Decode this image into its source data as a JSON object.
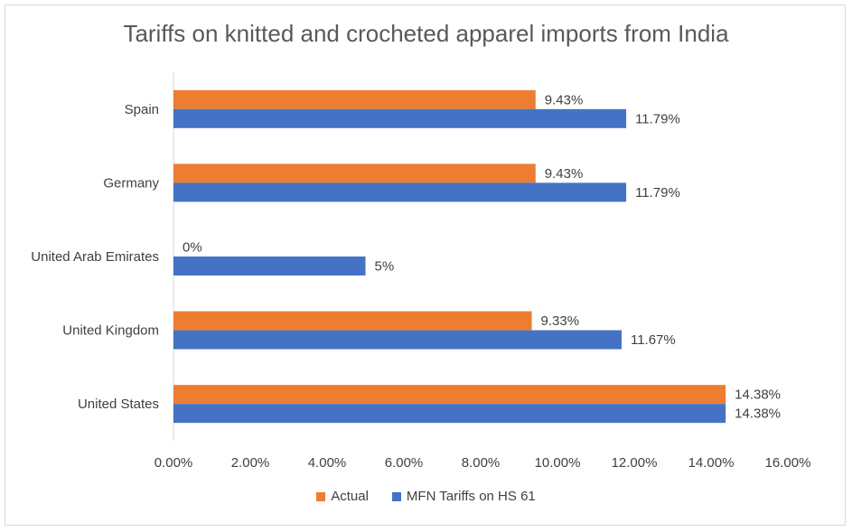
{
  "chart_data": {
    "type": "bar",
    "orientation": "horizontal",
    "title": "Tariffs on knitted and crocheted apparel imports from India",
    "categories": [
      "Spain",
      "Germany",
      "United Arab Emirates",
      "United Kingdom",
      "United States"
    ],
    "series": [
      {
        "name": "Actual",
        "color": "#ed7d31",
        "values": [
          9.43,
          9.43,
          0,
          9.33,
          14.38
        ],
        "labels": [
          "9.43%",
          "9.43%",
          "0%",
          "9.33%",
          "14.38%"
        ]
      },
      {
        "name": "MFN Tariffs on HS 61",
        "color": "#4472c4",
        "values": [
          11.79,
          11.79,
          5,
          11.67,
          14.38
        ],
        "labels": [
          "11.79%",
          "11.79%",
          "5%",
          "11.67%",
          "14.38%"
        ]
      }
    ],
    "xlim": [
      0,
      16
    ],
    "xticks": [
      "0.00%",
      "2.00%",
      "4.00%",
      "6.00%",
      "8.00%",
      "10.00%",
      "12.00%",
      "14.00%",
      "16.00%"
    ],
    "xlabel": "",
    "ylabel": "",
    "grid": false,
    "legend": "bottom"
  }
}
